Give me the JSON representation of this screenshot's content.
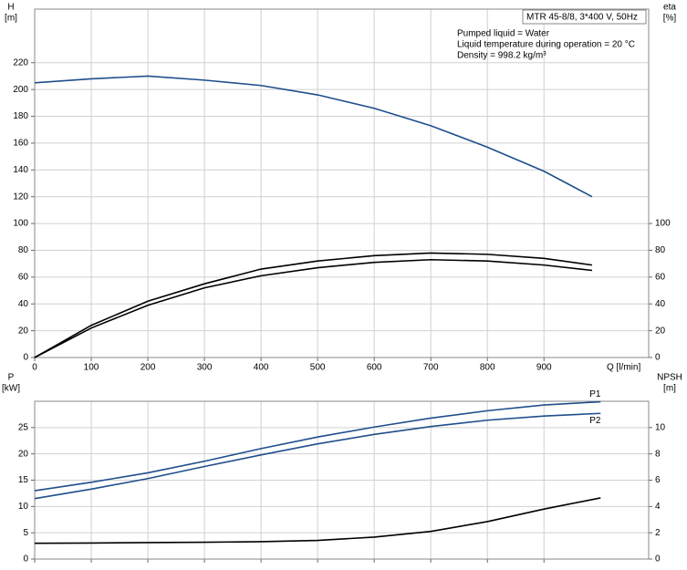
{
  "chart_data": [
    {
      "type": "line",
      "ylabel": [
        "H",
        "[m]"
      ],
      "y2label": [
        "eta",
        "[%]"
      ],
      "xlabel": "Q [l/min]",
      "annotations": [
        "MTR 45-8/8, 3*400 V, 50Hz",
        "Pumped liquid = Water",
        "Liquid temperature during operation = 20 °C",
        "Density = 998.2 kg/m³"
      ],
      "x": [
        0,
        100,
        200,
        300,
        400,
        500,
        600,
        700,
        800,
        900,
        985
      ],
      "series": [
        {
          "color": "#1f4e8c",
          "axis": "y",
          "values": [
            205,
            208,
            210,
            207,
            203,
            196,
            186,
            173,
            157,
            139,
            120
          ]
        },
        {
          "color": "#000000",
          "axis": "y2",
          "values": [
            0,
            24,
            42,
            55,
            66,
            72,
            76,
            78,
            77,
            74,
            69
          ]
        },
        {
          "color": "#000000",
          "axis": "y2",
          "values": [
            0,
            22,
            39,
            52,
            61,
            67,
            71,
            73,
            72,
            69,
            65
          ]
        }
      ],
      "xlim": [
        0,
        1085
      ],
      "xticks": [
        0,
        100,
        200,
        300,
        400,
        500,
        600,
        700,
        800,
        900
      ],
      "ylim": [
        0,
        260
      ],
      "yticks": [
        0,
        20,
        40,
        60,
        80,
        100,
        120,
        140,
        160,
        180,
        200,
        220
      ],
      "y2lim": [
        0,
        260
      ],
      "y2ticks": [
        0,
        20,
        40,
        60,
        80,
        100
      ],
      "grid": true,
      "xtick_labels": true
    },
    {
      "type": "line",
      "ylabel": [
        "P",
        "[kW]"
      ],
      "y2label": [
        "NPSH",
        "[m]"
      ],
      "x": [
        0,
        100,
        200,
        300,
        400,
        500,
        600,
        700,
        800,
        900,
        1000
      ],
      "series": [
        {
          "name": "P1",
          "color": "#1f4e8c",
          "axis": "y",
          "values": [
            13,
            14.6,
            16.4,
            18.6,
            21,
            23.2,
            25.1,
            26.8,
            28.2,
            29.3,
            29.9
          ]
        },
        {
          "name": "P2",
          "color": "#1f4e8c",
          "axis": "y",
          "values": [
            11.5,
            13.3,
            15.3,
            17.6,
            19.8,
            21.9,
            23.7,
            25.2,
            26.4,
            27.2,
            27.7
          ]
        },
        {
          "color": "#000000",
          "axis": "y2",
          "values": [
            1.2,
            1.22,
            1.25,
            1.28,
            1.32,
            1.42,
            1.67,
            2.1,
            2.85,
            3.8,
            4.65
          ]
        }
      ],
      "xlim": [
        0,
        1085
      ],
      "xticks": [
        0,
        100,
        200,
        300,
        400,
        500,
        600,
        700,
        800,
        900
      ],
      "ylim": [
        0,
        30
      ],
      "yticks": [
        0,
        5,
        10,
        15,
        20,
        25
      ],
      "y2lim": [
        0,
        12
      ],
      "y2ticks": [
        0,
        2,
        4,
        6,
        8,
        10
      ],
      "grid": true,
      "xtick_labels": false
    }
  ]
}
